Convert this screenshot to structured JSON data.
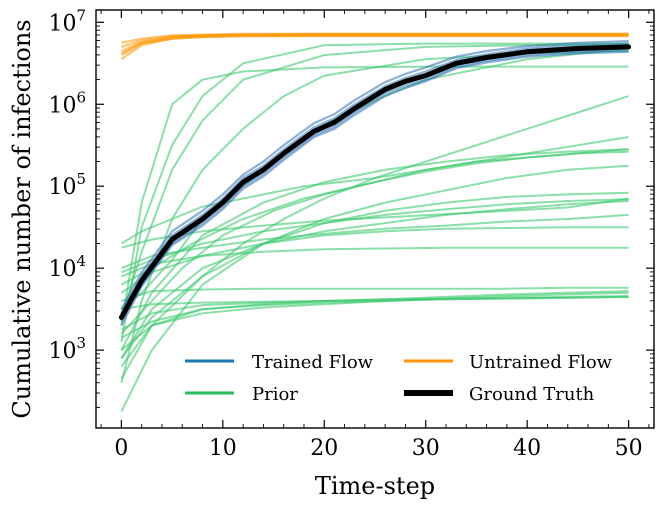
{
  "chart_data": {
    "type": "line",
    "xlabel": "Time-step",
    "ylabel": "Cumulative number of infections",
    "xlim": [
      -2.5,
      52.5
    ],
    "ylim_log10": [
      2.05,
      7.15
    ],
    "yscale": "log",
    "x_ticks": [
      0,
      10,
      20,
      30,
      40,
      50
    ],
    "y_ticks": [
      {
        "base": "10",
        "exp": "3"
      },
      {
        "base": "10",
        "exp": "4"
      },
      {
        "base": "10",
        "exp": "5"
      },
      {
        "base": "10",
        "exp": "6"
      },
      {
        "base": "10",
        "exp": "7"
      }
    ],
    "legend": [
      {
        "label": "Trained Flow",
        "color": "#1f77b4"
      },
      {
        "label": "Untrained Flow",
        "color": "#ff9500"
      },
      {
        "label": "Prior",
        "color": "#2cbd5a"
      },
      {
        "label": "Ground Truth",
        "color": "#000000"
      }
    ],
    "legend_position": "lower-right",
    "colors": {
      "trained": "#2e6fb5",
      "untrained": "#ff9500",
      "prior": "#3ec96f",
      "truth": "#000000"
    },
    "series": {
      "ground_truth": {
        "x": [
          0,
          2,
          5,
          8,
          10,
          12,
          14,
          16,
          19,
          21,
          23,
          26,
          28,
          30,
          33,
          36,
          40,
          45,
          50
        ],
        "log10_y": [
          3.4,
          3.85,
          4.35,
          4.6,
          4.8,
          5.05,
          5.2,
          5.4,
          5.67,
          5.78,
          5.95,
          6.18,
          6.28,
          6.35,
          6.5,
          6.57,
          6.64,
          6.68,
          6.7
        ]
      },
      "trained_flow_samples": [
        {
          "x": [
            0,
            2,
            5,
            8,
            10,
            12,
            14,
            16,
            19,
            21,
            23,
            26,
            28,
            30,
            33,
            36,
            40,
            45,
            50
          ],
          "log10_y": [
            3.45,
            3.9,
            4.4,
            4.65,
            4.85,
            5.1,
            5.25,
            5.45,
            5.72,
            5.83,
            6.0,
            6.22,
            6.32,
            6.4,
            6.54,
            6.61,
            6.68,
            6.72,
            6.74
          ]
        },
        {
          "x": [
            0,
            2,
            5,
            8,
            10,
            12,
            14,
            16,
            19,
            21,
            23,
            26,
            28,
            30,
            33,
            36,
            40,
            45,
            50
          ],
          "log10_y": [
            3.35,
            3.8,
            4.3,
            4.55,
            4.75,
            5.0,
            5.15,
            5.35,
            5.62,
            5.73,
            5.9,
            6.13,
            6.23,
            6.3,
            6.46,
            6.53,
            6.6,
            6.64,
            6.66
          ]
        },
        {
          "x": [
            0,
            2,
            5,
            8,
            10,
            12,
            14,
            16,
            19,
            21,
            23,
            26,
            28,
            30,
            33,
            36,
            40,
            45,
            50
          ],
          "log10_y": [
            3.5,
            3.95,
            4.45,
            4.7,
            4.9,
            5.14,
            5.3,
            5.5,
            5.77,
            5.88,
            6.05,
            6.27,
            6.37,
            6.45,
            6.58,
            6.65,
            6.71,
            6.75,
            6.77
          ]
        },
        {
          "x": [
            0,
            2,
            5,
            8,
            10,
            12,
            14,
            16,
            19,
            21,
            23,
            26,
            28,
            30,
            33,
            36,
            40,
            45,
            50
          ],
          "log10_y": [
            3.3,
            3.78,
            4.28,
            4.52,
            4.72,
            4.97,
            5.12,
            5.32,
            5.6,
            5.7,
            5.87,
            6.1,
            6.2,
            6.28,
            6.44,
            6.51,
            6.58,
            6.62,
            6.64
          ]
        }
      ],
      "untrained_flow_samples": [
        {
          "x": [
            0,
            2,
            5,
            8,
            12,
            20,
            30,
            40,
            50
          ],
          "log10_y": [
            6.55,
            6.72,
            6.8,
            6.82,
            6.83,
            6.83,
            6.83,
            6.83,
            6.83
          ]
        },
        {
          "x": [
            0,
            2,
            5,
            8,
            12,
            20,
            30,
            40,
            50
          ],
          "log10_y": [
            6.65,
            6.76,
            6.82,
            6.84,
            6.85,
            6.85,
            6.85,
            6.85,
            6.85
          ]
        },
        {
          "x": [
            0,
            2,
            5,
            8,
            12,
            20,
            30,
            40,
            50
          ],
          "log10_y": [
            6.7,
            6.78,
            6.83,
            6.84,
            6.85,
            6.86,
            6.86,
            6.86,
            6.86
          ]
        },
        {
          "x": [
            0,
            2,
            5,
            8,
            12,
            20,
            30,
            40,
            50
          ],
          "log10_y": [
            6.62,
            6.75,
            6.81,
            6.83,
            6.84,
            6.84,
            6.84,
            6.84,
            6.84
          ]
        },
        {
          "x": [
            0,
            2,
            5,
            8,
            12,
            20,
            30,
            40,
            50
          ],
          "log10_y": [
            6.75,
            6.8,
            6.84,
            6.85,
            6.86,
            6.86,
            6.86,
            6.86,
            6.86
          ]
        },
        {
          "x": [
            0,
            2,
            5,
            8,
            12,
            20,
            30,
            40,
            50
          ],
          "log10_y": [
            6.6,
            6.74,
            6.8,
            6.82,
            6.83,
            6.84,
            6.84,
            6.84,
            6.84
          ]
        }
      ],
      "prior_samples": [
        {
          "x": [
            0,
            2,
            5,
            8,
            12,
            20,
            30,
            40,
            50
          ],
          "log10_y": [
            3.1,
            4.5,
            5.5,
            6.1,
            6.5,
            6.72,
            6.74,
            6.74,
            6.74
          ]
        },
        {
          "x": [
            0,
            2,
            5,
            8,
            12,
            20,
            30,
            40,
            50
          ],
          "log10_y": [
            3.3,
            4.8,
            6.0,
            6.3,
            6.4,
            6.45,
            6.46,
            6.46,
            6.46
          ]
        },
        {
          "x": [
            0,
            2,
            5,
            8,
            12,
            16,
            20,
            30,
            40,
            50
          ],
          "log10_y": [
            2.6,
            3.6,
            4.6,
            5.2,
            5.7,
            6.1,
            6.35,
            6.55,
            6.62,
            6.65
          ]
        },
        {
          "x": [
            0,
            2,
            5,
            8,
            12,
            16,
            20,
            26,
            30,
            40,
            50
          ],
          "log10_y": [
            3.5,
            3.7,
            4.1,
            4.6,
            5.0,
            5.4,
            5.75,
            6.1,
            6.3,
            6.55,
            6.68
          ]
        },
        {
          "x": [
            0,
            3,
            8,
            12,
            16,
            20,
            25,
            30,
            35,
            40,
            45,
            50
          ],
          "log10_y": [
            2.9,
            3.4,
            3.9,
            4.3,
            4.6,
            4.85,
            5.1,
            5.3,
            5.5,
            5.7,
            5.9,
            6.1
          ]
        },
        {
          "x": [
            0,
            3,
            6,
            10,
            15,
            20,
            25,
            30,
            35,
            40,
            45,
            50
          ],
          "log10_y": [
            3.2,
            3.6,
            4.0,
            4.4,
            4.7,
            4.9,
            5.05,
            5.2,
            5.3,
            5.4,
            5.5,
            5.6
          ]
        },
        {
          "x": [
            0,
            2,
            5,
            8,
            12,
            18,
            25,
            30,
            35,
            40,
            45,
            50
          ],
          "log10_y": [
            4.3,
            4.45,
            4.6,
            4.75,
            4.85,
            5.0,
            5.1,
            5.2,
            5.3,
            5.35,
            5.4,
            5.45
          ]
        },
        {
          "x": [
            0,
            3,
            7,
            12,
            18,
            25,
            30,
            35,
            40,
            45,
            50
          ],
          "log10_y": [
            3.8,
            4.0,
            4.3,
            4.6,
            4.85,
            5.05,
            5.18,
            5.28,
            5.35,
            5.4,
            5.42
          ]
        },
        {
          "x": [
            0,
            3,
            8,
            14,
            20,
            26,
            32,
            38,
            44,
            50
          ],
          "log10_y": [
            2.25,
            3.0,
            3.8,
            4.3,
            4.6,
            4.8,
            4.95,
            5.1,
            5.2,
            5.25
          ]
        },
        {
          "x": [
            0,
            3,
            8,
            14,
            20,
            26,
            32,
            38,
            44,
            50
          ],
          "log10_y": [
            2.65,
            3.3,
            3.9,
            4.3,
            4.55,
            4.7,
            4.8,
            4.87,
            4.9,
            4.92
          ]
        },
        {
          "x": [
            0,
            3,
            8,
            14,
            20,
            26,
            32,
            38,
            44,
            50
          ],
          "log10_y": [
            3.95,
            4.1,
            4.3,
            4.45,
            4.55,
            4.65,
            4.72,
            4.78,
            4.82,
            4.84
          ]
        },
        {
          "x": [
            0,
            3,
            8,
            14,
            20,
            26,
            32,
            38,
            44,
            50
          ],
          "log10_y": [
            4.0,
            4.15,
            4.25,
            4.35,
            4.42,
            4.48,
            4.52,
            4.57,
            4.6,
            4.65
          ]
        },
        {
          "x": [
            0,
            3,
            8,
            14,
            20,
            26,
            32,
            38,
            44,
            50
          ],
          "log10_y": [
            3.7,
            3.95,
            4.15,
            4.3,
            4.4,
            4.45,
            4.48,
            4.49,
            4.5,
            4.5
          ]
        },
        {
          "x": [
            0,
            3,
            8,
            14,
            20,
            26,
            32,
            38,
            44,
            50
          ],
          "log10_y": [
            3.9,
            4.05,
            4.15,
            4.2,
            4.23,
            4.24,
            4.25,
            4.25,
            4.25,
            4.25
          ]
        },
        {
          "x": [
            0,
            3,
            8,
            14,
            20,
            26,
            32,
            38,
            44,
            50
          ],
          "log10_y": [
            3.6,
            3.72,
            3.74,
            3.75,
            3.75,
            3.75,
            3.75,
            3.75,
            3.76,
            3.76
          ]
        },
        {
          "x": [
            0,
            3,
            8,
            14,
            20,
            26,
            32,
            38,
            44,
            50
          ],
          "log10_y": [
            3.15,
            3.35,
            3.5,
            3.55,
            3.58,
            3.6,
            3.62,
            3.63,
            3.64,
            3.65
          ]
        },
        {
          "x": [
            0,
            3,
            8,
            14,
            20,
            26,
            32,
            38,
            44,
            50
          ],
          "log10_y": [
            3.0,
            3.3,
            3.45,
            3.52,
            3.56,
            3.6,
            3.63,
            3.66,
            3.68,
            3.7
          ]
        },
        {
          "x": [
            0,
            3,
            8,
            14,
            20,
            26,
            32,
            38,
            44,
            50
          ],
          "log10_y": [
            3.25,
            3.45,
            3.55,
            3.58,
            3.6,
            3.62,
            3.65,
            3.68,
            3.7,
            3.72
          ]
        },
        {
          "x": [
            0,
            3,
            8,
            14,
            20,
            26,
            32,
            38,
            44,
            50
          ],
          "log10_y": [
            3.5,
            3.56,
            3.58,
            3.59,
            3.6,
            3.61,
            3.62,
            3.63,
            3.64,
            3.65
          ]
        },
        {
          "x": [
            0,
            3,
            8,
            14,
            20,
            26,
            32,
            38,
            44,
            50
          ],
          "log10_y": [
            2.8,
            3.3,
            3.5,
            3.56,
            3.6,
            3.62,
            3.63,
            3.64,
            3.65,
            3.66
          ]
        },
        {
          "x": [
            0,
            3,
            8,
            14,
            20,
            26,
            32,
            38,
            44,
            50
          ],
          "log10_y": [
            4.25,
            4.35,
            4.45,
            4.52,
            4.58,
            4.62,
            4.66,
            4.7,
            4.74,
            4.85
          ]
        },
        {
          "x": [
            0,
            2,
            5,
            8,
            12,
            20,
            30,
            40,
            50
          ],
          "log10_y": [
            3.4,
            4.2,
            5.2,
            5.8,
            6.3,
            6.6,
            6.7,
            6.72,
            6.73
          ]
        },
        {
          "x": [
            0,
            3,
            8,
            14,
            20,
            26,
            32,
            38,
            44,
            50
          ],
          "log10_y": [
            3.0,
            3.7,
            4.4,
            4.8,
            5.05,
            5.2,
            5.3,
            5.38,
            5.42,
            5.45
          ]
        },
        {
          "x": [
            0,
            3,
            8,
            14,
            20,
            26,
            32,
            38,
            44,
            50
          ],
          "log10_y": [
            2.9,
            3.5,
            4.0,
            4.3,
            4.45,
            4.55,
            4.65,
            4.72,
            4.78,
            4.82
          ]
        }
      ]
    }
  }
}
